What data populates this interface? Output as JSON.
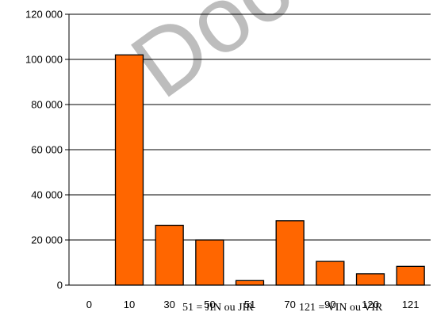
{
  "chart_data": {
    "type": "bar",
    "categories": [
      "0",
      "10",
      "30",
      "50",
      "51",
      "70",
      "90",
      "120",
      "121"
    ],
    "values": [
      0,
      102000,
      26500,
      20000,
      2000,
      28500,
      10500,
      5000,
      8300
    ],
    "ylim": [
      0,
      120000
    ],
    "y_ticks": [
      "0",
      "20 000",
      "40 000",
      "60 000",
      "80 000",
      "100 000",
      "120 000"
    ],
    "y_tick_values": [
      0,
      20000,
      40000,
      60000,
      80000,
      100000,
      120000
    ],
    "grid": true,
    "bar_color": "#ff6600",
    "annotations": [
      "51 = JIN ou JIR",
      "121 = VIN ou VIR"
    ]
  },
  "watermark": {
    "text": "Docu",
    "color": "#bdbdbd"
  }
}
